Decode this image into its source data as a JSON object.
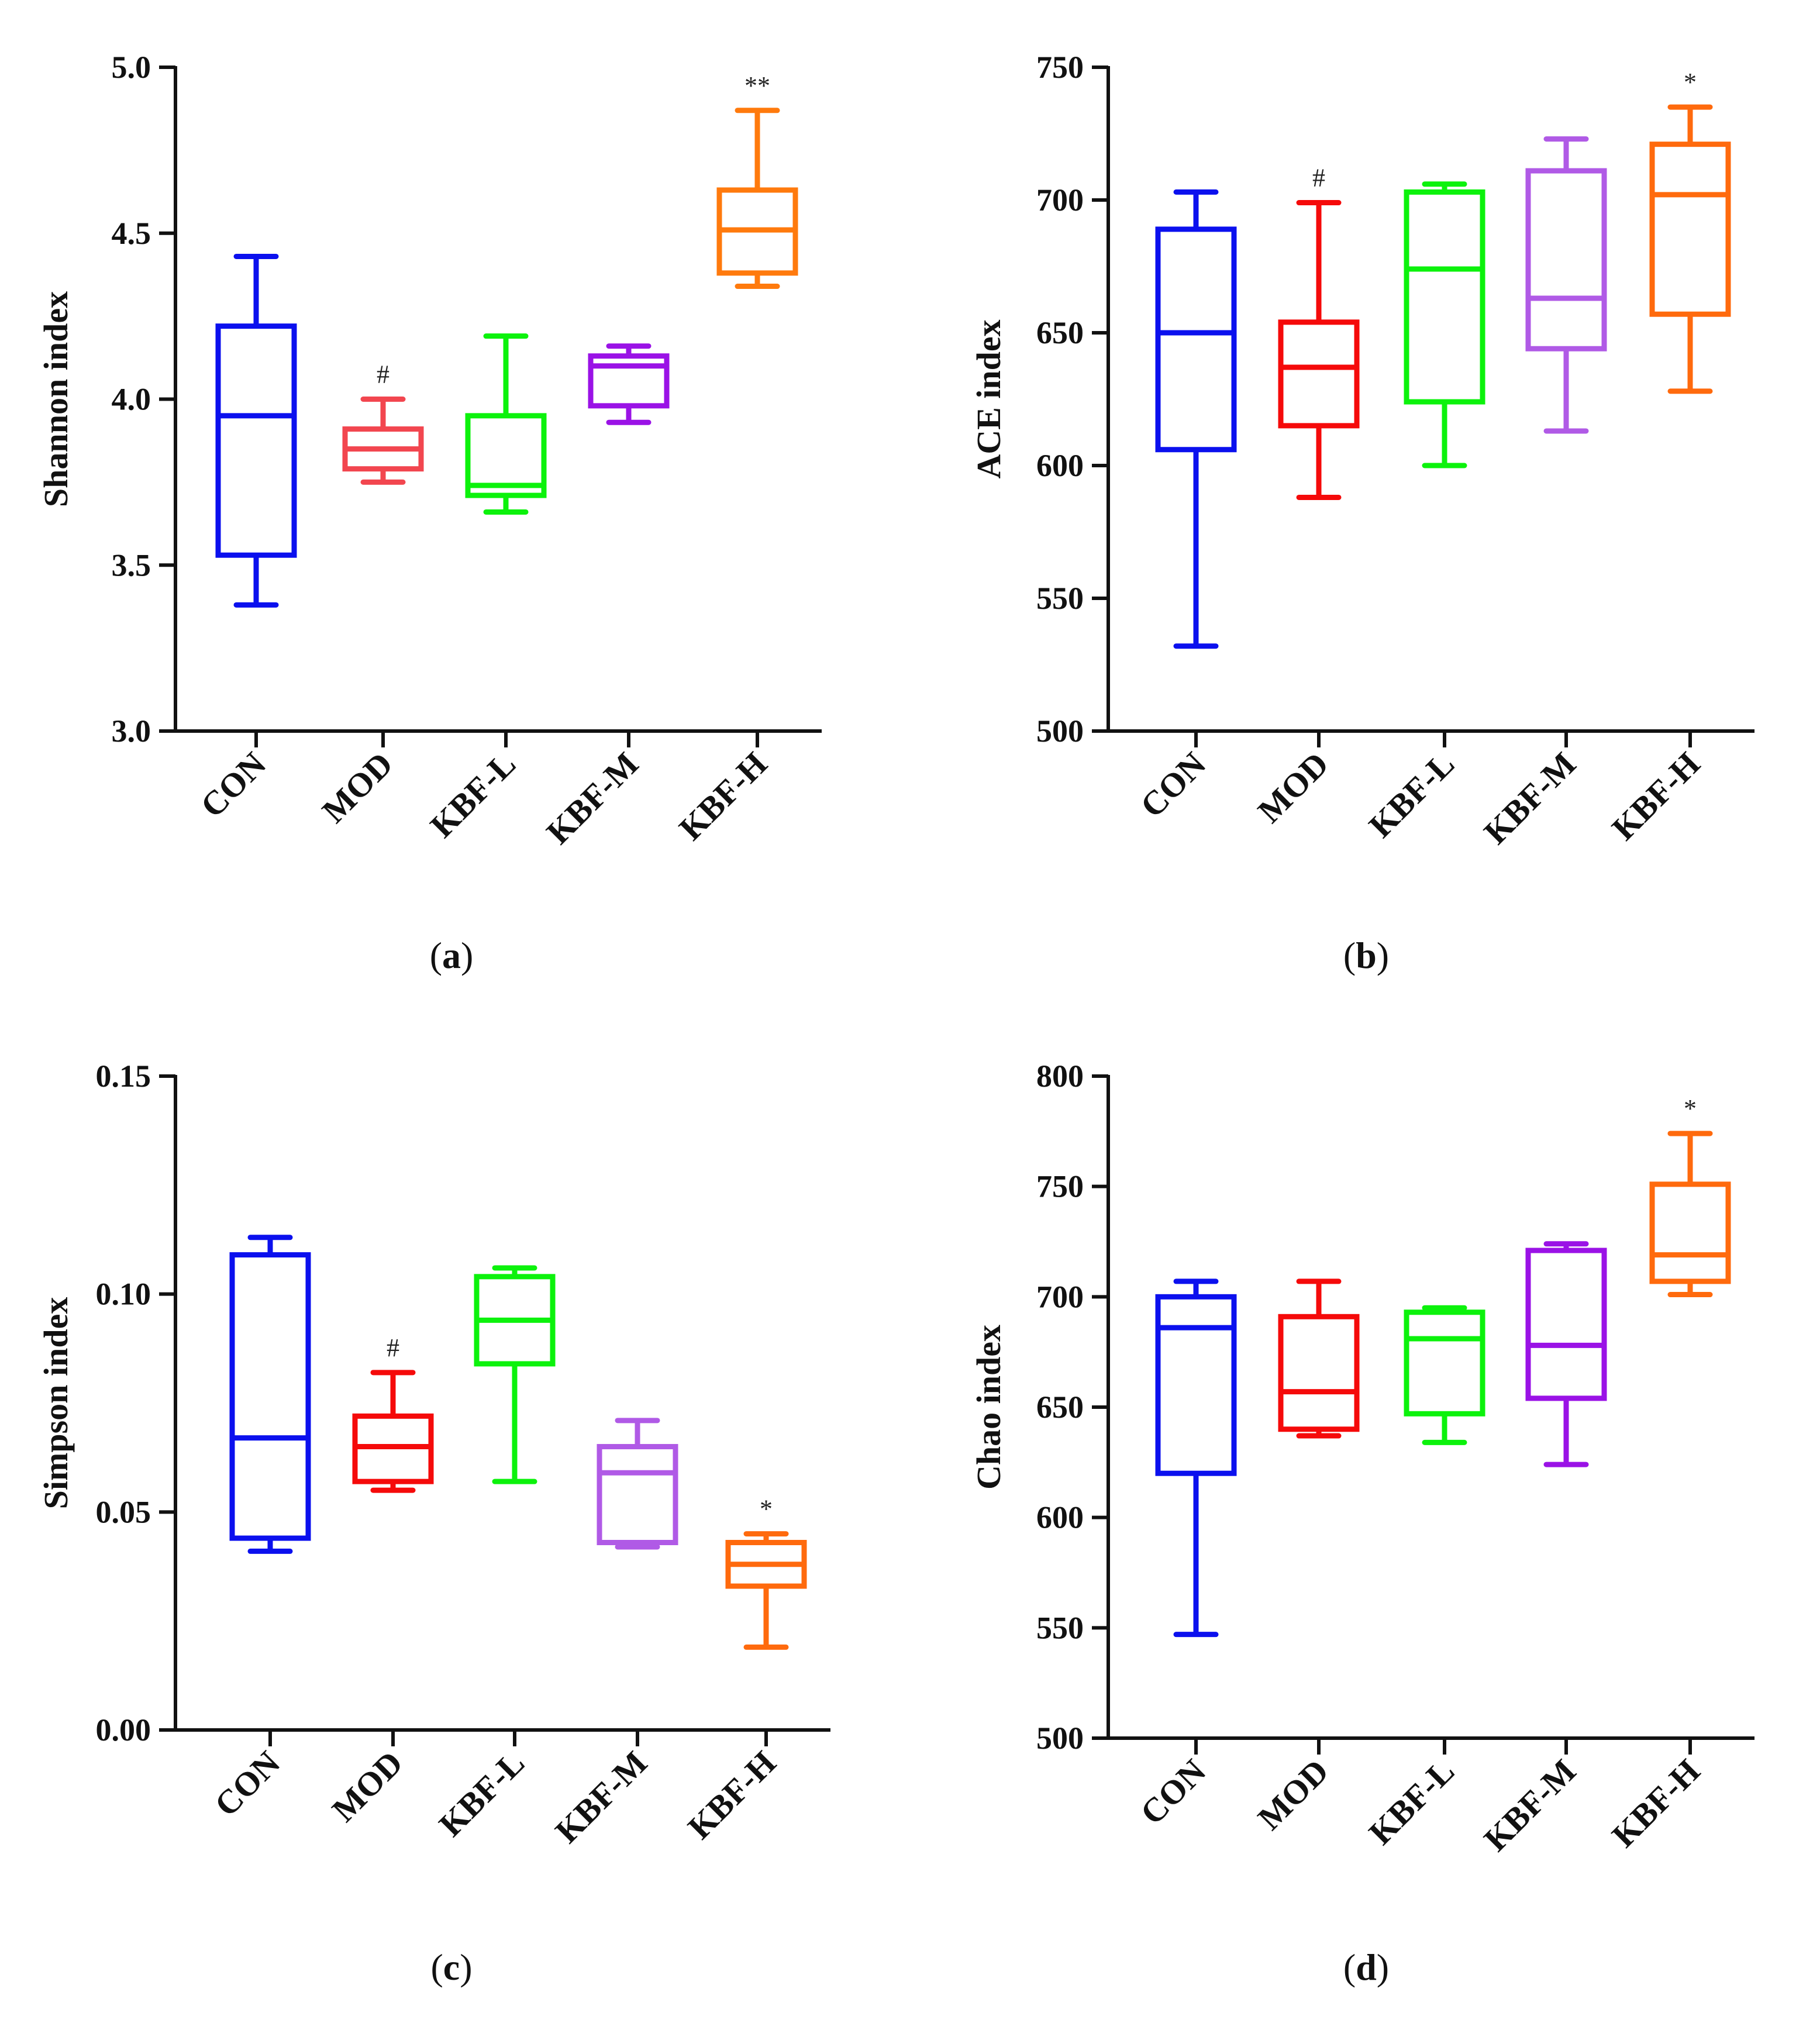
{
  "chart_data": [
    {
      "type": "box",
      "panel_label": "a",
      "ylabel": "Shannon index",
      "ylim": [
        3.0,
        5.0
      ],
      "yticks": [
        3.0,
        3.5,
        4.0,
        4.5,
        5.0
      ],
      "tick_decimals": 1,
      "categories": [
        "CON",
        "MOD",
        "KBF-L",
        "KBF-M",
        "KBF-H"
      ],
      "colors": [
        "#0b10ee",
        "#f2464f",
        "#0cf20c",
        "#9a12e6",
        "#ff7a0d"
      ],
      "boxes": [
        {
          "min": 3.38,
          "q1": 3.53,
          "median": 3.95,
          "q3": 4.22,
          "max": 4.43,
          "sig": ""
        },
        {
          "min": 3.75,
          "q1": 3.79,
          "median": 3.85,
          "q3": 3.91,
          "max": 4.0,
          "sig": "#"
        },
        {
          "min": 3.66,
          "q1": 3.71,
          "median": 3.74,
          "q3": 3.95,
          "max": 4.19,
          "sig": ""
        },
        {
          "min": 3.93,
          "q1": 3.98,
          "median": 4.1,
          "q3": 4.13,
          "max": 4.16,
          "sig": ""
        },
        {
          "min": 4.34,
          "q1": 4.38,
          "median": 4.51,
          "q3": 4.63,
          "max": 4.87,
          "sig": "**"
        }
      ]
    },
    {
      "type": "box",
      "panel_label": "b",
      "ylabel": "ACE index",
      "ylim": [
        500,
        750
      ],
      "yticks": [
        500,
        550,
        600,
        650,
        700,
        750
      ],
      "tick_decimals": 0,
      "categories": [
        "CON",
        "MOD",
        "KBF-L",
        "KBF-M",
        "KBF-H"
      ],
      "colors": [
        "#0b10ee",
        "#f50a0a",
        "#0cf20c",
        "#b05ae6",
        "#ff6a0d"
      ],
      "boxes": [
        {
          "min": 532,
          "q1": 606,
          "median": 650,
          "q3": 689,
          "max": 703,
          "sig": ""
        },
        {
          "min": 588,
          "q1": 615,
          "median": 637,
          "q3": 654,
          "max": 699,
          "sig": "#"
        },
        {
          "min": 600,
          "q1": 624,
          "median": 674,
          "q3": 703,
          "max": 706,
          "sig": ""
        },
        {
          "min": 613,
          "q1": 644,
          "median": 663,
          "q3": 711,
          "max": 723,
          "sig": ""
        },
        {
          "min": 628,
          "q1": 657,
          "median": 702,
          "q3": 721,
          "max": 735,
          "sig": "*"
        }
      ]
    },
    {
      "type": "box",
      "panel_label": "c",
      "ylabel": "Simpson index",
      "ylim": [
        0.0,
        0.15
      ],
      "yticks": [
        0.0,
        0.05,
        0.1,
        0.15
      ],
      "tick_decimals": 2,
      "categories": [
        "CON",
        "MOD",
        "KBF-L",
        "KBF-M",
        "KBF-H"
      ],
      "colors": [
        "#0b10ee",
        "#f50a0a",
        "#0cf20c",
        "#b05ae6",
        "#ff6a0d"
      ],
      "boxes": [
        {
          "min": 0.041,
          "q1": 0.044,
          "median": 0.067,
          "q3": 0.109,
          "max": 0.113,
          "sig": ""
        },
        {
          "min": 0.055,
          "q1": 0.057,
          "median": 0.065,
          "q3": 0.072,
          "max": 0.082,
          "sig": "#"
        },
        {
          "min": 0.057,
          "q1": 0.084,
          "median": 0.094,
          "q3": 0.104,
          "max": 0.106,
          "sig": ""
        },
        {
          "min": 0.042,
          "q1": 0.043,
          "median": 0.059,
          "q3": 0.065,
          "max": 0.071,
          "sig": ""
        },
        {
          "min": 0.019,
          "q1": 0.033,
          "median": 0.038,
          "q3": 0.043,
          "max": 0.045,
          "sig": "*"
        }
      ]
    },
    {
      "type": "box",
      "panel_label": "d",
      "ylabel": "Chao index",
      "ylim": [
        500,
        800
      ],
      "yticks": [
        500,
        550,
        600,
        650,
        700,
        750,
        800
      ],
      "tick_decimals": 0,
      "categories": [
        "CON",
        "MOD",
        "KBF-L",
        "KBF-M",
        "KBF-H"
      ],
      "colors": [
        "#0b10ee",
        "#f50a0a",
        "#0cf20c",
        "#9a12e6",
        "#ff6a0d"
      ],
      "boxes": [
        {
          "min": 547,
          "q1": 620,
          "median": 686,
          "q3": 700,
          "max": 707,
          "sig": ""
        },
        {
          "min": 637,
          "q1": 640,
          "median": 657,
          "q3": 691,
          "max": 707,
          "sig": ""
        },
        {
          "min": 634,
          "q1": 647,
          "median": 681,
          "q3": 693,
          "max": 695,
          "sig": ""
        },
        {
          "min": 624,
          "q1": 654,
          "median": 678,
          "q3": 721,
          "max": 724,
          "sig": ""
        },
        {
          "min": 701,
          "q1": 707,
          "median": 719,
          "q3": 751,
          "max": 774,
          "sig": "*"
        }
      ]
    }
  ]
}
